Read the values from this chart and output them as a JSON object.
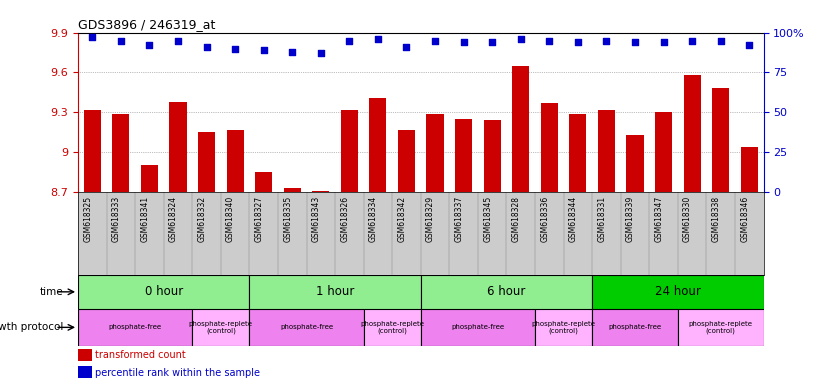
{
  "title": "GDS3896 / 246319_at",
  "samples": [
    "GSM618325",
    "GSM618333",
    "GSM618341",
    "GSM618324",
    "GSM618332",
    "GSM618340",
    "GSM618327",
    "GSM618335",
    "GSM618343",
    "GSM618326",
    "GSM618334",
    "GSM618342",
    "GSM618329",
    "GSM618337",
    "GSM618345",
    "GSM618328",
    "GSM618336",
    "GSM618344",
    "GSM618331",
    "GSM618339",
    "GSM618347",
    "GSM618330",
    "GSM618338",
    "GSM618346"
  ],
  "bar_values": [
    9.32,
    9.29,
    8.9,
    9.38,
    9.15,
    9.17,
    8.85,
    8.73,
    8.71,
    9.32,
    9.41,
    9.17,
    9.29,
    9.25,
    9.24,
    9.65,
    9.37,
    9.29,
    9.32,
    9.13,
    9.3,
    9.58,
    9.48,
    9.04
  ],
  "percentile_values": [
    97,
    95,
    92,
    95,
    91,
    90,
    89,
    88,
    87,
    95,
    96,
    91,
    95,
    94,
    94,
    96,
    95,
    94,
    95,
    94,
    94,
    95,
    95,
    92
  ],
  "bar_color": "#CC0000",
  "percentile_color": "#0000CC",
  "ymin": 8.7,
  "ymax": 9.9,
  "yticks": [
    8.7,
    9.0,
    9.3,
    9.6,
    9.9
  ],
  "ytick_labels": [
    "8.7",
    "9",
    "9.3",
    "9.6",
    "9.9"
  ],
  "right_yticks": [
    0,
    25,
    50,
    75,
    100
  ],
  "right_ytick_labels": [
    "0",
    "25",
    "50",
    "75",
    "100%"
  ],
  "percentile_min": 0,
  "percentile_max": 100,
  "time_groups": [
    {
      "label": "0 hour",
      "start": 0,
      "end": 6,
      "color": "#90EE90"
    },
    {
      "label": "1 hour",
      "start": 6,
      "end": 12,
      "color": "#90EE90"
    },
    {
      "label": "6 hour",
      "start": 12,
      "end": 18,
      "color": "#90EE90"
    },
    {
      "label": "24 hour",
      "start": 18,
      "end": 24,
      "color": "#00CC00"
    }
  ],
  "protocol_groups": [
    {
      "label": "phosphate-free",
      "start": 0,
      "end": 4,
      "color": "#EE82EE"
    },
    {
      "label": "phosphate-replete\n(control)",
      "start": 4,
      "end": 6,
      "color": "#FFB3FF"
    },
    {
      "label": "phosphate-free",
      "start": 6,
      "end": 10,
      "color": "#EE82EE"
    },
    {
      "label": "phosphate-replete\n(control)",
      "start": 10,
      "end": 12,
      "color": "#FFB3FF"
    },
    {
      "label": "phosphate-free",
      "start": 12,
      "end": 16,
      "color": "#EE82EE"
    },
    {
      "label": "phosphate-replete\n(control)",
      "start": 16,
      "end": 18,
      "color": "#FFB3FF"
    },
    {
      "label": "phosphate-free",
      "start": 18,
      "end": 21,
      "color": "#EE82EE"
    },
    {
      "label": "phosphate-replete\n(control)",
      "start": 21,
      "end": 24,
      "color": "#FFB3FF"
    }
  ],
  "bg_color": "#FFFFFF",
  "axis_label_color_left": "#CC0000",
  "axis_label_color_right": "#0000CC",
  "time_label": "time",
  "protocol_label": "growth protocol",
  "sample_box_color": "#CCCCCC"
}
